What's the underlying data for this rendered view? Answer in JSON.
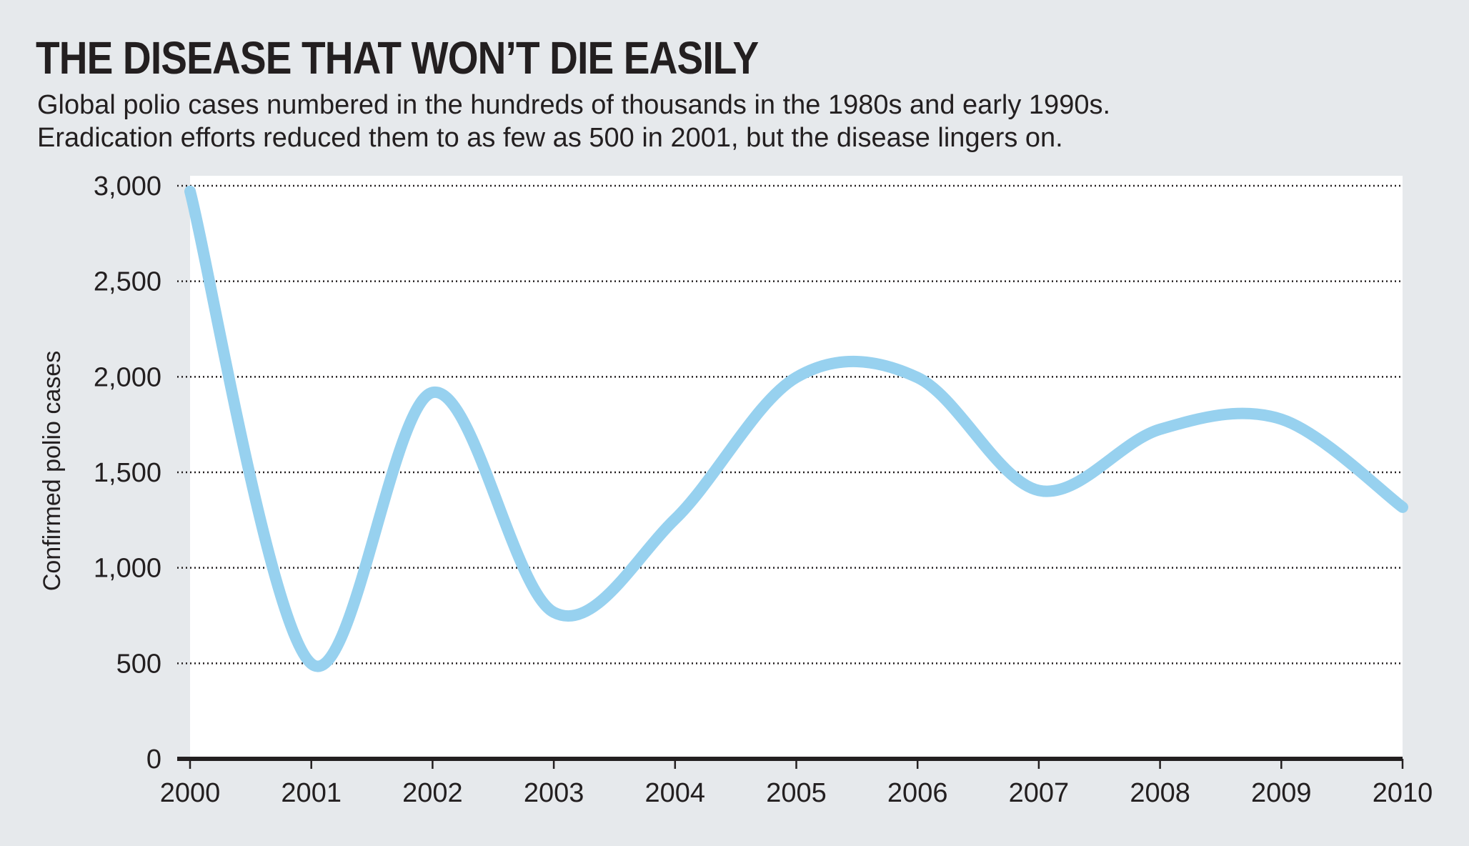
{
  "chart_data": {
    "type": "line",
    "title": "THE DISEASE THAT WON’T DIE EASILY",
    "subtitle_lines": [
      "Global polio cases numbered in the hundreds of thousands in the 1980s and early 1990s.",
      "Eradication efforts reduced them to as few as 500 in 2001, but the disease lingers on."
    ],
    "xlabel": "",
    "ylabel": "Confirmed polio cases",
    "x_ticks": [
      "2000",
      "2001",
      "2002",
      "2003",
      "2004",
      "2005",
      "2006",
      "2007",
      "2008",
      "2009",
      "2010"
    ],
    "y_ticks": [
      "0",
      "500",
      "1,000",
      "1,500",
      "2,000",
      "2,500",
      "3,000"
    ],
    "xlim": [
      2000,
      2010
    ],
    "ylim": [
      0,
      3000
    ],
    "grid": "horizontal dotted",
    "series": [
      {
        "color": "#97d1ef",
        "x": [
          2000,
          2001,
          2002,
          2003,
          2004,
          2005,
          2006,
          2007,
          2008,
          2009,
          2010
        ],
        "y": [
          2971,
          498,
          1918,
          767,
          1255,
          1997,
          1996,
          1405,
          1725,
          1778,
          1317
        ]
      }
    ]
  },
  "colors": {
    "background": "#e6e9ec",
    "plot_area": "#ffffff",
    "line": "#97d1ef",
    "text": "#231f20",
    "axis": "#231f20"
  }
}
